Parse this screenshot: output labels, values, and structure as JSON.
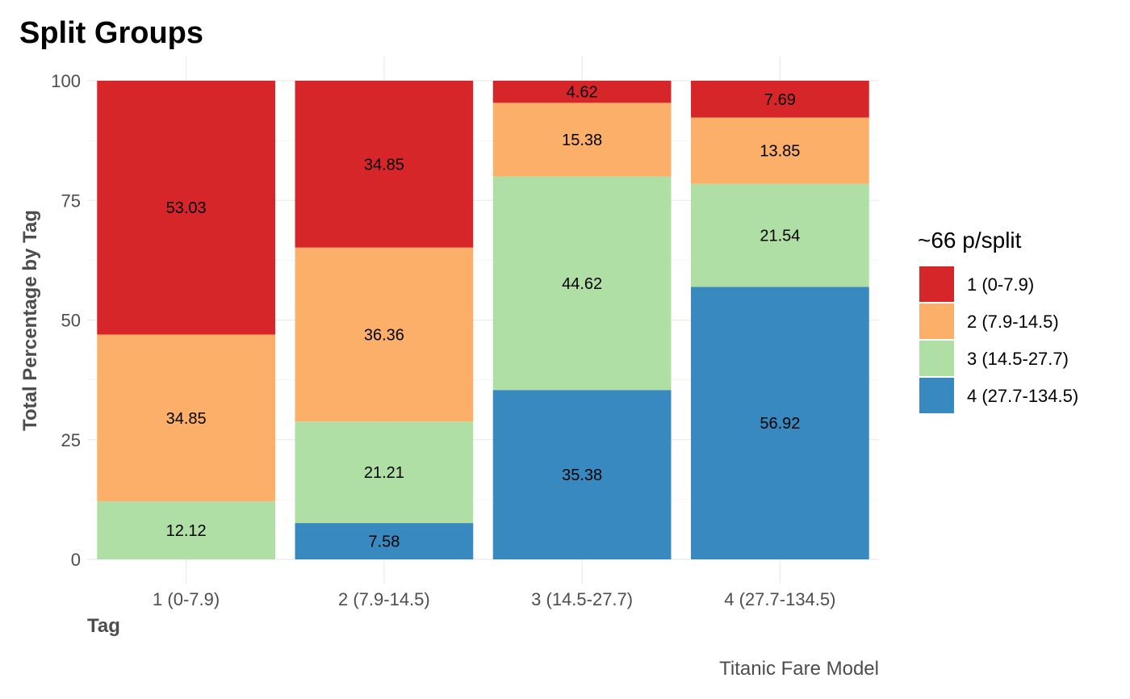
{
  "chart_data": {
    "type": "bar",
    "stacked": true,
    "title": "Split Groups",
    "xlabel": "Tag",
    "ylabel": "Total Percentage by Tag",
    "caption": "Titanic Fare Model",
    "legend_title": "~66 p/split",
    "legend_position": "right",
    "grid": true,
    "ylim": [
      0,
      100
    ],
    "yticks": [
      0,
      25,
      50,
      75,
      100
    ],
    "categories": [
      "1 (0-7.9)",
      "2 (7.9-14.5)",
      "3 (14.5-27.7)",
      "4 (27.7-134.5)"
    ],
    "series": [
      {
        "name": "1 (0-7.9)",
        "color": "#d7262a",
        "values": [
          53.03,
          34.85,
          4.62,
          7.69
        ]
      },
      {
        "name": "2 (7.9-14.5)",
        "color": "#fbaf68",
        "values": [
          34.85,
          36.36,
          15.38,
          13.85
        ]
      },
      {
        "name": "3 (14.5-27.7)",
        "color": "#afdfa5",
        "values": [
          12.12,
          21.21,
          44.62,
          21.54
        ]
      },
      {
        "name": "4 (27.7-134.5)",
        "color": "#3789bf",
        "values": [
          0,
          7.58,
          35.38,
          56.92
        ]
      }
    ],
    "stack_order_bottom_to_top": [
      "4 (27.7-134.5)",
      "3 (14.5-27.7)",
      "2 (7.9-14.5)",
      "1 (0-7.9)"
    ]
  }
}
